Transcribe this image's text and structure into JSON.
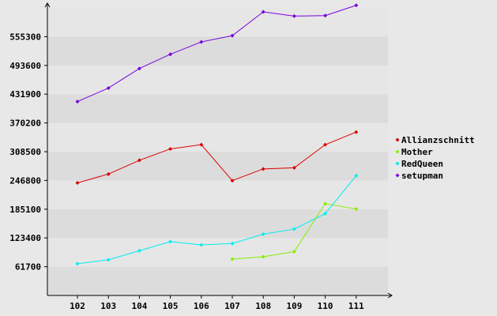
{
  "chart_data": {
    "type": "line",
    "title": "",
    "xlabel": "",
    "ylabel": "",
    "categories": [
      "102",
      "103",
      "104",
      "105",
      "106",
      "107",
      "108",
      "109",
      "110",
      "111"
    ],
    "yticks": [
      "61700",
      "123400",
      "185100",
      "246800",
      "308500",
      "370200",
      "431900",
      "493600",
      "555300"
    ],
    "ylim": [
      0,
      617000
    ],
    "grid": "horizontal alternating bands",
    "legend_position": "right",
    "series": [
      {
        "name": "Allianzschnitt",
        "color": "#dd0000",
        "values": [
          241500,
          260500,
          290000,
          314500,
          323500,
          246500,
          271500,
          274000,
          323500,
          350500
        ]
      },
      {
        "name": "Mother",
        "color": "#88ee00",
        "values": [
          null,
          null,
          null,
          null,
          null,
          78000,
          83000,
          94000,
          197000,
          185500
        ]
      },
      {
        "name": "RedQueen",
        "color": "#00eeee",
        "values": [
          68000,
          76500,
          96000,
          115500,
          108500,
          111500,
          131500,
          142500,
          175500,
          257000
        ]
      },
      {
        "name": "setupman",
        "color": "#7700dd",
        "values": [
          416000,
          445000,
          487000,
          517500,
          544000,
          557500,
          608500,
          599500,
          600500,
          622500
        ]
      }
    ]
  }
}
